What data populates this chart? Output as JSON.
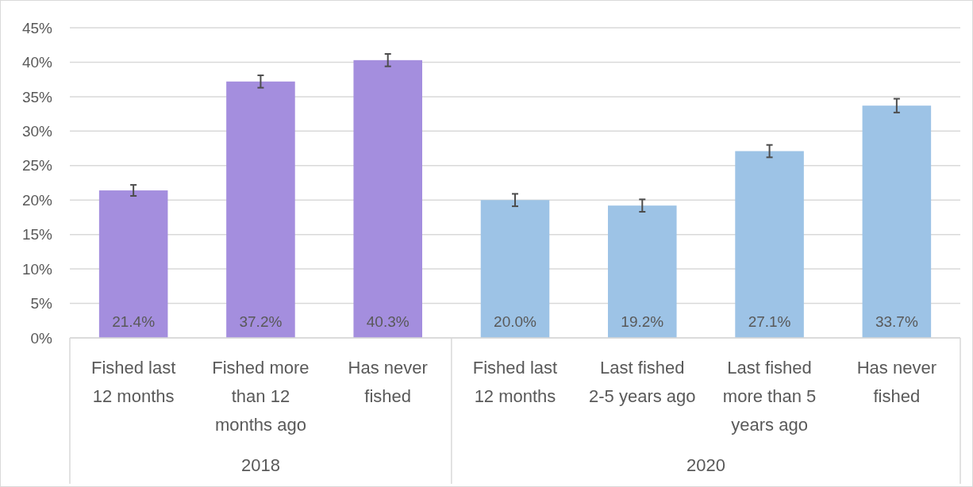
{
  "chart_data": {
    "type": "bar",
    "categories": [
      "Fished last 12 months",
      "Fished more than 12 months ago",
      "Has never fished",
      "Fished last 12 months",
      "Last fished 2-5 years ago",
      "Last fished more than 5 years ago",
      "Has never fished"
    ],
    "values": [
      21.4,
      37.2,
      40.3,
      20.0,
      19.2,
      27.1,
      33.7
    ],
    "errors": [
      0.8,
      0.9,
      0.9,
      0.9,
      0.9,
      0.9,
      1.0
    ],
    "colors": [
      "#a48ede",
      "#a48ede",
      "#a48ede",
      "#9dc3e6",
      "#9dc3e6",
      "#9dc3e6",
      "#9dc3e6"
    ],
    "value_labels": [
      "21.4%",
      "37.2%",
      "40.3%",
      "20.0%",
      "19.2%",
      "27.1%",
      "33.7%"
    ],
    "annotations": [
      "2018",
      "2020"
    ],
    "ylim": [
      0,
      45
    ],
    "yticks": [
      {
        "value": 0,
        "label": "0%"
      },
      {
        "value": 5,
        "label": "5%"
      },
      {
        "value": 10,
        "label": "10%"
      },
      {
        "value": 15,
        "label": "15%"
      },
      {
        "value": 20,
        "label": "20%"
      },
      {
        "value": 25,
        "label": "25%"
      },
      {
        "value": 30,
        "label": "30%"
      },
      {
        "value": 35,
        "label": "35%"
      },
      {
        "value": 40,
        "label": "40%"
      },
      {
        "value": 45,
        "label": "45%"
      }
    ],
    "grid": "y"
  }
}
